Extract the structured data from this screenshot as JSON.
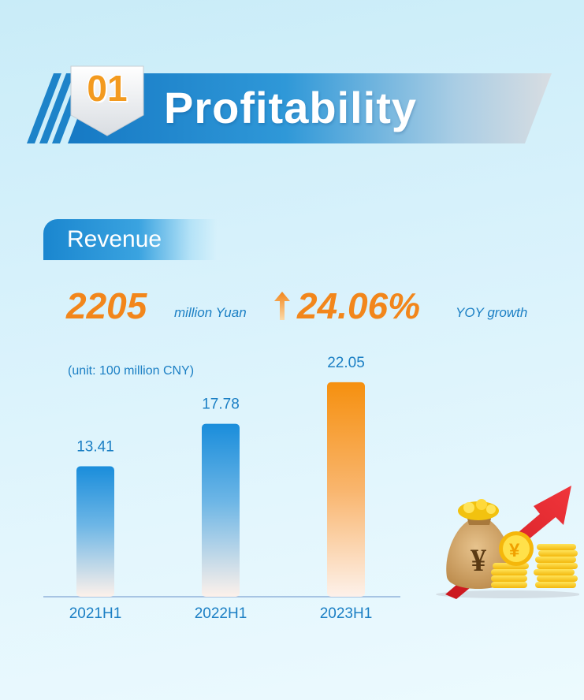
{
  "header": {
    "number": "01",
    "title": "Profitability"
  },
  "section": {
    "label": "Revenue"
  },
  "stats": {
    "value": "2205",
    "value_unit": "million Yuan",
    "growth": "24.06%",
    "growth_label": "YOY growth"
  },
  "unit_note": "(unit: 100 million CNY)",
  "colors": {
    "accent_orange": "#f2861b",
    "accent_blue": "#1b7fc4",
    "bar_blue": "#1a8ddb",
    "bar_orange": "#f6900f"
  },
  "chart_data": {
    "type": "bar",
    "categories": [
      "2021H1",
      "2022H1",
      "2023H1"
    ],
    "values": [
      13.41,
      17.78,
      22.05
    ],
    "value_labels": [
      "13.41",
      "17.78",
      "22.05"
    ],
    "title": "",
    "xlabel": "",
    "ylabel": "",
    "ylim": [
      0,
      23.5
    ],
    "grid": false,
    "highlight_index": 2
  },
  "illustration": {
    "icon": "money-bag-coins-arrow-icon"
  }
}
